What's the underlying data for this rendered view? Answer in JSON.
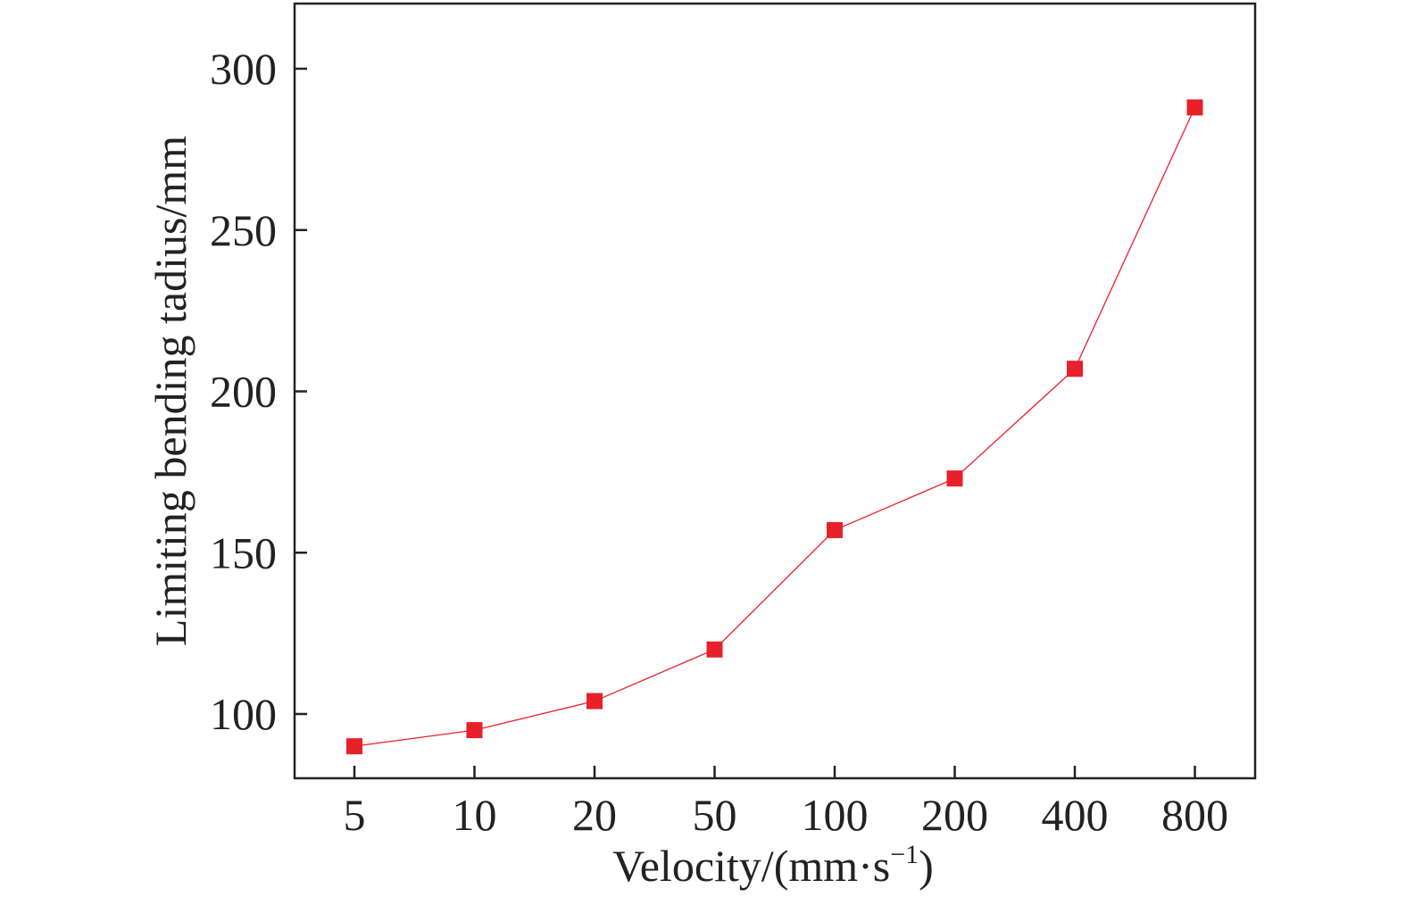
{
  "chart_data": {
    "type": "line",
    "x_type": "categorical",
    "categories": [
      "5",
      "10",
      "20",
      "50",
      "100",
      "200",
      "400",
      "800"
    ],
    "series": [
      {
        "values": [
          90,
          95,
          104,
          120,
          157,
          173,
          207,
          288
        ],
        "color": "#e8202a",
        "marker": "square"
      }
    ],
    "xlabel": "Velocity/(mm·s",
    "xlabel_sup": "−1",
    "xlabel_end": ")",
    "ylabel": "Limiting bending tadius/mm",
    "yticks": [
      100,
      150,
      200,
      250,
      300
    ],
    "ylim": [
      80,
      320
    ],
    "grid": false,
    "legend": "none"
  }
}
